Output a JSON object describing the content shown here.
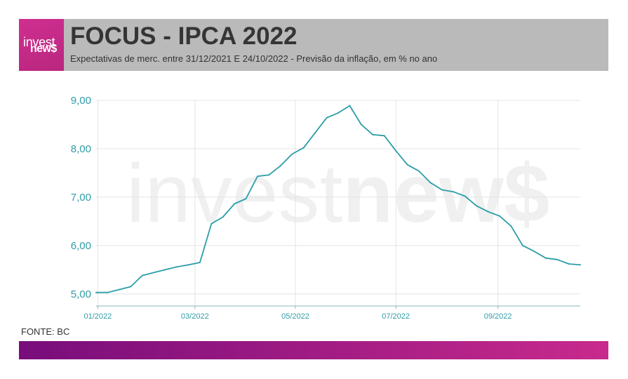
{
  "brand": {
    "logo_light": "invest",
    "logo_bold": "new$"
  },
  "colors": {
    "brand_magenta": "#c4298b",
    "header_band": "#bababa",
    "series_line": "#2b9ea7",
    "tick_text": "#2e9ea7",
    "footer_bar_start": "#780d7b",
    "footer_bar_end": "#c82a8c"
  },
  "chart_data": {
    "type": "line",
    "title": "FOCUS - IPCA 2022",
    "subtitle": "Expectativas de merc. entre 31/12/2021 E 24/10/2022 - Previsão da inflação, em % no ano",
    "source": "FONTE: BC",
    "grid": true,
    "xlim": [
      "31/12/2021",
      "21/10/2022"
    ],
    "ylim": [
      4.75,
      9.0
    ],
    "xticks": [
      "01/2022",
      "03/2022",
      "05/2022",
      "07/2022",
      "09/2022"
    ],
    "yticks": [
      {
        "value": 5,
        "label": "5,00"
      },
      {
        "value": 6,
        "label": "6,00"
      },
      {
        "value": 7,
        "label": "7,00"
      },
      {
        "value": 8,
        "label": "8,00"
      },
      {
        "value": 9,
        "label": "9,00"
      }
    ],
    "series": [
      {
        "x": [
          "31/12/2021",
          "07/01/2022",
          "14/01/2022",
          "21/01/2022",
          "28/01/2022",
          "04/02/2022",
          "11/02/2022",
          "18/02/2022",
          "25/02/2022",
          "04/03/2022",
          "11/03/2022",
          "18/03/2022",
          "25/03/2022",
          "01/04/2022",
          "08/04/2022",
          "15/04/2022",
          "22/04/2022",
          "29/04/2022",
          "06/05/2022",
          "13/05/2022",
          "20/05/2022",
          "27/05/2022",
          "03/06/2022",
          "10/06/2022",
          "17/06/2022",
          "24/06/2022",
          "01/07/2022",
          "08/07/2022",
          "15/07/2022",
          "22/07/2022",
          "29/07/2022",
          "05/08/2022",
          "12/08/2022",
          "19/08/2022",
          "26/08/2022",
          "02/09/2022",
          "09/09/2022",
          "16/09/2022",
          "23/09/2022",
          "30/09/2022",
          "07/10/2022",
          "14/10/2022",
          "21/10/2022"
        ],
        "y": [
          5.03,
          5.03,
          5.09,
          5.15,
          5.38,
          5.44,
          5.5,
          5.56,
          5.6,
          5.65,
          6.45,
          6.59,
          6.86,
          6.97,
          7.43,
          7.46,
          7.65,
          7.89,
          8.02,
          8.33,
          8.64,
          8.74,
          8.89,
          8.5,
          8.29,
          8.27,
          7.96,
          7.67,
          7.54,
          7.3,
          7.15,
          7.11,
          7.02,
          6.82,
          6.7,
          6.61,
          6.4,
          6.0,
          5.88,
          5.74,
          5.71,
          5.62,
          5.6
        ]
      }
    ]
  }
}
